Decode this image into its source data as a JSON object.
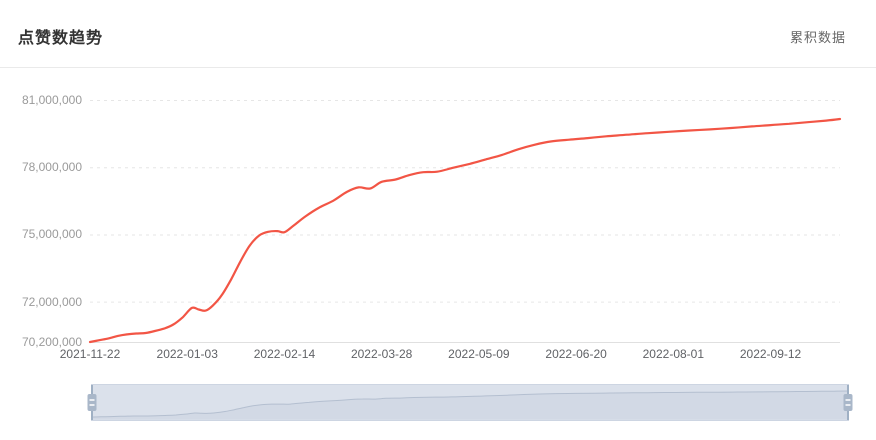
{
  "header": {
    "title": "点赞数趋势",
    "mode_label": "累积数据"
  },
  "colors": {
    "series_line": "#f25545",
    "title_text": "#333333",
    "y_tick_text": "#9a9a9a",
    "x_tick_text": "#606266",
    "gridline": "#e6e6e6",
    "datazoom_fill": "#dbe1eb",
    "datazoom_handle": "#a9b7c9"
  },
  "chart_data": {
    "type": "line",
    "title": "点赞数趋势",
    "series": [
      {
        "name": "点赞数",
        "color": "#f25545",
        "points": [
          [
            "2021-11-22",
            70200000
          ],
          [
            "2021-11-26",
            70280000
          ],
          [
            "2021-11-30",
            70360000
          ],
          [
            "2021-12-04",
            70470000
          ],
          [
            "2021-12-08",
            70540000
          ],
          [
            "2021-12-12",
            70580000
          ],
          [
            "2021-12-16",
            70600000
          ],
          [
            "2021-12-20",
            70690000
          ],
          [
            "2021-12-24",
            70800000
          ],
          [
            "2021-12-28",
            70980000
          ],
          [
            "2022-01-01",
            71300000
          ],
          [
            "2022-01-05",
            71720000
          ],
          [
            "2022-01-08",
            71650000
          ],
          [
            "2022-01-11",
            71600000
          ],
          [
            "2022-01-14",
            71820000
          ],
          [
            "2022-01-18",
            72300000
          ],
          [
            "2022-01-22",
            73000000
          ],
          [
            "2022-01-26",
            73800000
          ],
          [
            "2022-01-30",
            74500000
          ],
          [
            "2022-02-03",
            74950000
          ],
          [
            "2022-02-07",
            75120000
          ],
          [
            "2022-02-11",
            75150000
          ],
          [
            "2022-02-14",
            75100000
          ],
          [
            "2022-02-18",
            75400000
          ],
          [
            "2022-02-23",
            75800000
          ],
          [
            "2022-03-01",
            76200000
          ],
          [
            "2022-03-07",
            76500000
          ],
          [
            "2022-03-13",
            76900000
          ],
          [
            "2022-03-18",
            77100000
          ],
          [
            "2022-03-23",
            77050000
          ],
          [
            "2022-03-28",
            77350000
          ],
          [
            "2022-04-03",
            77450000
          ],
          [
            "2022-04-09",
            77650000
          ],
          [
            "2022-04-15",
            77780000
          ],
          [
            "2022-04-21",
            77800000
          ],
          [
            "2022-04-28",
            77980000
          ],
          [
            "2022-05-05",
            78150000
          ],
          [
            "2022-05-12",
            78350000
          ],
          [
            "2022-05-19",
            78550000
          ],
          [
            "2022-05-26",
            78800000
          ],
          [
            "2022-06-02",
            79000000
          ],
          [
            "2022-06-09",
            79150000
          ],
          [
            "2022-06-17",
            79230000
          ],
          [
            "2022-06-25",
            79300000
          ],
          [
            "2022-07-03",
            79380000
          ],
          [
            "2022-07-12",
            79450000
          ],
          [
            "2022-07-21",
            79520000
          ],
          [
            "2022-07-30",
            79580000
          ],
          [
            "2022-08-08",
            79640000
          ],
          [
            "2022-08-17",
            79690000
          ],
          [
            "2022-08-26",
            79750000
          ],
          [
            "2022-09-04",
            79820000
          ],
          [
            "2022-09-12",
            79880000
          ],
          [
            "2022-09-20",
            79940000
          ],
          [
            "2022-09-28",
            80010000
          ],
          [
            "2022-10-06",
            80080000
          ],
          [
            "2022-10-12",
            80150000
          ]
        ]
      }
    ],
    "x_axis": {
      "tick_dates": [
        "2021-11-22",
        "2022-01-03",
        "2022-02-14",
        "2022-03-28",
        "2022-05-09",
        "2022-06-20",
        "2022-08-01",
        "2022-09-12"
      ],
      "tick_labels": [
        "2021-11-22",
        "2022-01-03",
        "2022-02-14",
        "2022-03-28",
        "2022-05-09",
        "2022-06-20",
        "2022-08-01",
        "2022-09-12"
      ]
    },
    "y_axis": {
      "min": 70200000,
      "max": 81000000,
      "tick_values": [
        81000000,
        78000000,
        75000000,
        72000000,
        70200000
      ],
      "tick_labels": [
        "81,000,000",
        "78,000,000",
        "75,000,000",
        "72,000,000",
        "70,200,000"
      ],
      "grid_values": [
        81000000,
        78000000,
        75000000,
        72000000
      ]
    },
    "grid": "horizontal dashed",
    "legend": "none",
    "datazoom": {
      "start_percent": 0,
      "end_percent": 100
    }
  }
}
